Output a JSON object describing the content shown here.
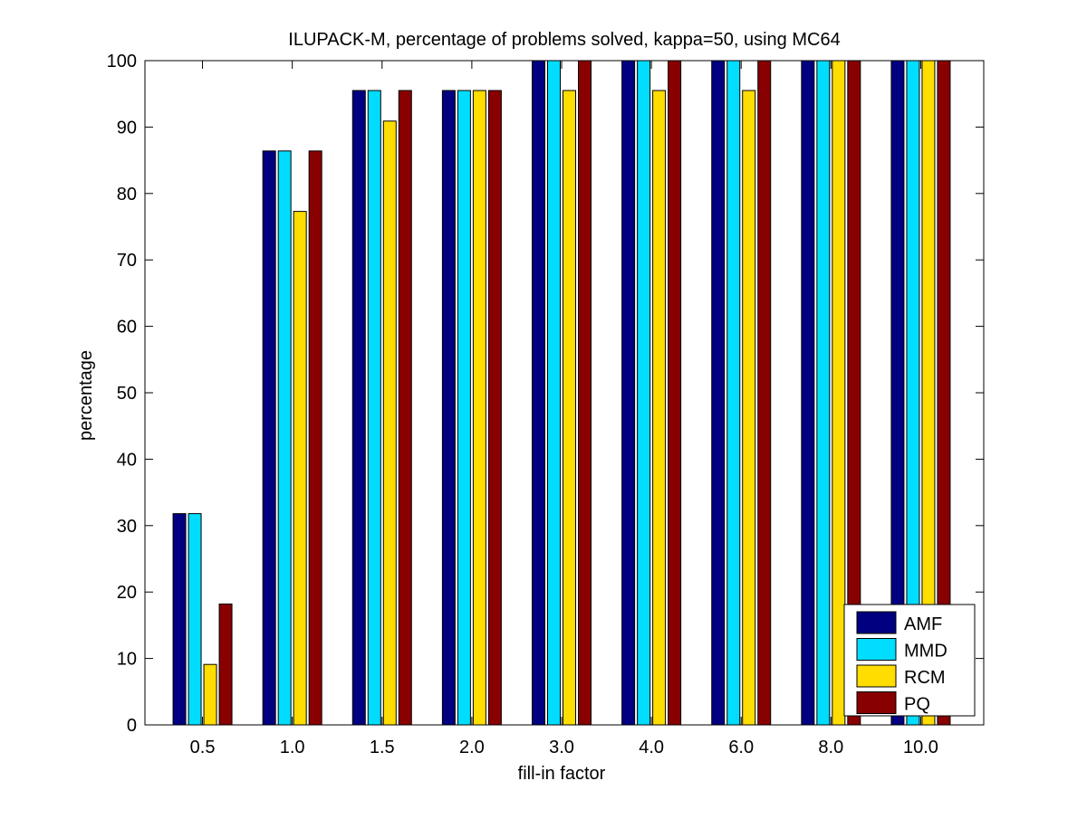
{
  "chart_data": {
    "type": "bar",
    "title": "ILUPACK-M, percentage of problems solved, kappa=50, using MC64",
    "xlabel": "fill-in factor",
    "ylabel": "percentage",
    "categories": [
      "0.5",
      "1.0",
      "1.5",
      "2.0",
      "3.0",
      "4.0",
      "6.0",
      "8.0",
      "10.0"
    ],
    "ylim": [
      0,
      100
    ],
    "yticks": [
      0,
      10,
      20,
      30,
      40,
      50,
      60,
      70,
      80,
      90,
      100
    ],
    "grid": false,
    "legend_position": "bottom-right",
    "series": [
      {
        "name": "AMF",
        "color": "#000080",
        "values": [
          31.8,
          86.4,
          95.5,
          95.5,
          100,
          100,
          100,
          100,
          100
        ]
      },
      {
        "name": "MMD",
        "color": "#00DDFF",
        "values": [
          31.8,
          86.4,
          95.5,
          95.5,
          100,
          100,
          100,
          100,
          100
        ]
      },
      {
        "name": "RCM",
        "color": "#FFDD00",
        "values": [
          9.1,
          77.3,
          90.9,
          95.5,
          95.5,
          95.5,
          95.5,
          100,
          100
        ]
      },
      {
        "name": "PQ",
        "color": "#880000",
        "values": [
          18.2,
          86.4,
          95.5,
          95.5,
          100,
          100,
          100,
          100,
          100
        ]
      }
    ]
  }
}
